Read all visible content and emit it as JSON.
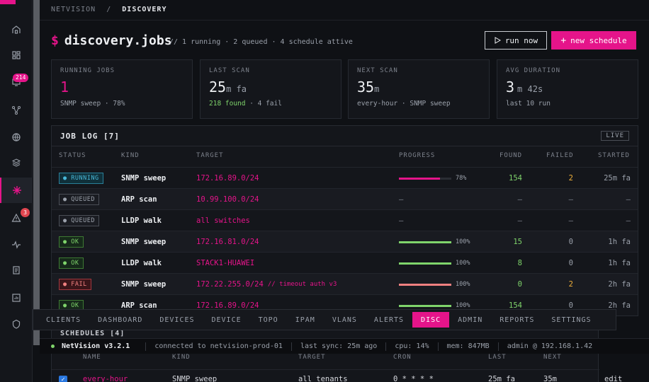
{
  "breadcrumb": {
    "root": "NETVISION",
    "sep": "/",
    "current": "DISCOVERY"
  },
  "header": {
    "prompt": "$",
    "title": "discovery.jobs",
    "subtitle": "// 1 running · 2 queued · 4 schedule attive",
    "run_now_label": "run now",
    "new_schedule_label": "new schedule"
  },
  "stats": [
    {
      "label": "RUNNING JOBS",
      "value": "1",
      "unit": "",
      "sub": "SNMP sweep · 78%"
    },
    {
      "label": "LAST SCAN",
      "value": "25",
      "unit": "m fa",
      "sub_green": "218 found",
      "sub_rest": " · 4 fail"
    },
    {
      "label": "NEXT SCAN",
      "value": "35",
      "unit": "m",
      "sub": "every-hour · SNMP sweep"
    },
    {
      "label": "AVG DURATION",
      "value": "3",
      "unit": "m 42s",
      "sub": "last 10 run"
    }
  ],
  "joblog": {
    "title": "JOB LOG [7]",
    "live": "LIVE",
    "columns": [
      "STATUS",
      "KIND",
      "TARGET",
      "PROGRESS",
      "FOUND",
      "FAILED",
      "STARTED"
    ],
    "rows": [
      {
        "status": "RUNNING",
        "kind": "SNMP sweep",
        "target": "172.16.89.0/24",
        "note": "",
        "progress": 78,
        "progress_label": "78%",
        "found": "154",
        "failed": "2",
        "started": "25m fa"
      },
      {
        "status": "QUEUED",
        "kind": "ARP scan",
        "target": "10.99.100.0/24",
        "note": "",
        "progress": null,
        "progress_label": "—",
        "found": "—",
        "failed": "—",
        "started": "—"
      },
      {
        "status": "QUEUED",
        "kind": "LLDP walk",
        "target": "all switches",
        "note": "",
        "progress": null,
        "progress_label": "—",
        "found": "—",
        "failed": "—",
        "started": "—"
      },
      {
        "status": "OK",
        "kind": "SNMP sweep",
        "target": "172.16.81.0/24",
        "note": "",
        "progress": 100,
        "progress_label": "100%",
        "found": "15",
        "failed": "0",
        "started": "1h fa"
      },
      {
        "status": "OK",
        "kind": "LLDP walk",
        "target": "STACK1-HUAWEI",
        "note": "",
        "progress": 100,
        "progress_label": "100%",
        "found": "8",
        "failed": "0",
        "started": "1h fa"
      },
      {
        "status": "FAIL",
        "kind": "SNMP sweep",
        "target": "172.22.255.0/24",
        "note": "// timeout auth v3",
        "progress": 100,
        "progress_label": "100%",
        "found": "0",
        "failed": "2",
        "started": "2h fa"
      },
      {
        "status": "OK",
        "kind": "ARP scan",
        "target": "172.16.89.0/24",
        "note": "",
        "progress": 100,
        "progress_label": "100%",
        "found": "154",
        "failed": "0",
        "started": "2h fa"
      }
    ]
  },
  "tabs": [
    "CLIENTS",
    "DASHBOARD",
    "DEVICES",
    "DEVICE",
    "TOPO",
    "IPAM",
    "VLANS",
    "ALERTS",
    "DISC",
    "ADMIN",
    "REPORTS",
    "SETTINGS"
  ],
  "active_tab": "DISC",
  "statusbar": {
    "app": "NetVision v3.2.1",
    "connection": "connected to netvision-prod-01",
    "sync": "last sync: 25m ago",
    "cpu": "cpu: 14%",
    "mem": "mem: 847MB",
    "user": "admin @ 192.168.1.42"
  },
  "schedules": {
    "title": "SCHEDULES [4]",
    "columns": [
      "NAME",
      "KIND",
      "TARGET",
      "CRON",
      "LAST",
      "NEXT"
    ],
    "row": {
      "name": "every-hour",
      "kind": "SNMP sweep",
      "target": "all tenants",
      "cron": "0 * * * *",
      "last": "25m fa",
      "next": "35m",
      "action": "edit"
    }
  },
  "sidebar_badges": {
    "devices": "214",
    "alerts": "3"
  },
  "colors": {
    "accent": "#e5148a",
    "ok": "#7fd46b",
    "fail": "#f08080",
    "amber": "#f0b03a"
  }
}
